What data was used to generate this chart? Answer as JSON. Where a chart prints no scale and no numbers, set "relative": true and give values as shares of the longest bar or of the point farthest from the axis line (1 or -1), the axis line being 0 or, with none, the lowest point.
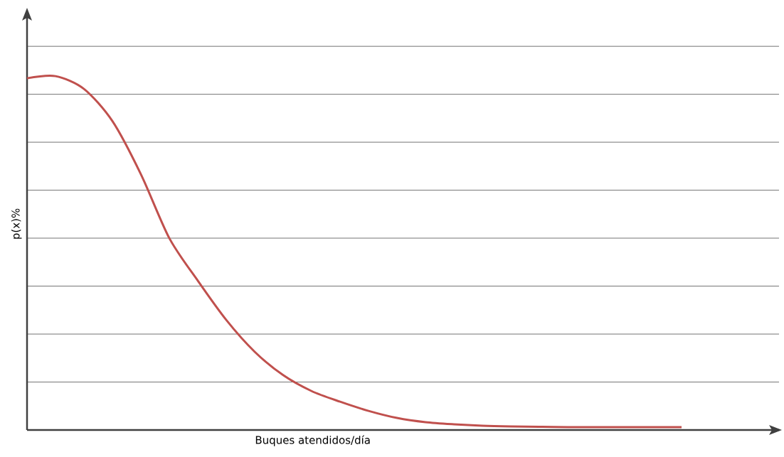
{
  "chart_data": {
    "type": "line",
    "relative": true,
    "xlabel": "Buques atendidos/día",
    "ylabel": "p(x)%",
    "color": "#c0504d",
    "grid": "y",
    "marker": "none",
    "categories": [
      null,
      null,
      null,
      null,
      null,
      null,
      null,
      null,
      null,
      null,
      null,
      null,
      null,
      null,
      null,
      null,
      null,
      null,
      null,
      null,
      null,
      null,
      null,
      null
    ],
    "values": [
      0.994,
      1,
      0.964,
      0.873,
      0.723,
      0.542,
      0.422,
      0.311,
      0.221,
      0.155,
      0.11,
      0.08,
      0.054,
      0.034,
      0.022,
      0.016,
      0.012,
      0.01,
      0.009,
      0.008,
      0.008,
      0.008,
      0.008,
      0.008
    ]
  }
}
